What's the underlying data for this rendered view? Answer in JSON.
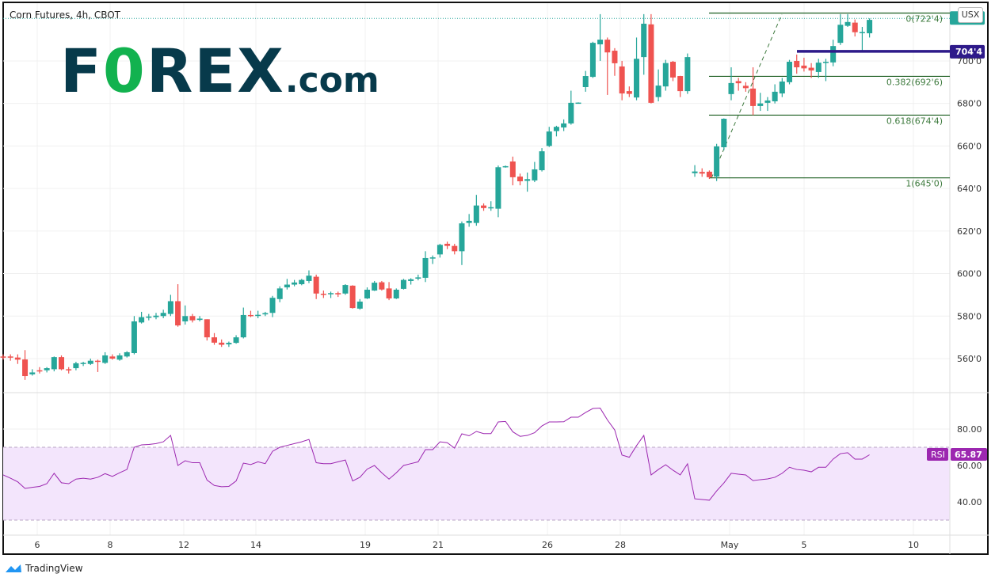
{
  "header": {
    "title": "Corn Futures, 4h, CBOT",
    "currency": "USX"
  },
  "logo": {
    "text": "FOREX.com",
    "part1": "F",
    "part2": "0",
    "part3": "REX",
    "part4": ".com"
  },
  "footer": {
    "brand": "TradingView"
  },
  "colors": {
    "up": "#26a69a",
    "down": "#ef5350",
    "fib": "#1b5e20",
    "level_line": "#2e1a8a",
    "rsi": "#9c27b0",
    "rsi_band": "#f3e5fc",
    "logo_dark": "#073a4b",
    "logo_green": "#12b24f"
  },
  "chart_data": {
    "type": "candlestick",
    "title": "Corn Futures, 4h, CBOT",
    "price_axis": {
      "ylim": [
        550,
        724
      ],
      "ticks": [
        {
          "value": 700,
          "label": "700'0"
        },
        {
          "value": 680,
          "label": "680'0"
        },
        {
          "value": 660,
          "label": "660'0"
        },
        {
          "value": 640,
          "label": "640'0"
        },
        {
          "value": 620,
          "label": "620'0"
        },
        {
          "value": 600,
          "label": "600'0"
        },
        {
          "value": 580,
          "label": "580'0"
        },
        {
          "value": 560,
          "label": "560'0"
        }
      ]
    },
    "x_ticks": [
      "6",
      "8",
      "12",
      "14",
      "19",
      "21",
      "26",
      "28",
      "May",
      "5",
      "10"
    ],
    "candles_ohlc": [
      [
        561,
        562,
        559.5,
        560.5
      ],
      [
        561,
        562,
        559,
        560.5
      ],
      [
        560.5,
        562,
        557.5,
        559.5
      ],
      [
        559.6,
        564,
        550,
        551.8
      ],
      [
        552.6,
        555,
        552,
        553.5
      ],
      [
        554.5,
        556,
        553,
        554
      ],
      [
        554.5,
        556,
        553.5,
        555.5
      ],
      [
        555,
        561,
        554,
        560.7
      ],
      [
        560.7,
        561.5,
        554.5,
        555
      ],
      [
        555,
        556,
        553,
        554.5
      ],
      [
        555.5,
        558.5,
        554.5,
        557.8
      ],
      [
        557.5,
        558.5,
        556.5,
        558
      ],
      [
        557.5,
        560,
        557,
        559
      ],
      [
        559,
        559.5,
        553.7,
        558.5
      ],
      [
        558,
        563,
        557.5,
        561.5
      ],
      [
        561,
        562,
        559.5,
        560
      ],
      [
        559.5,
        562.5,
        559,
        561.5
      ],
      [
        561,
        563.5,
        560.5,
        563
      ],
      [
        562.6,
        580,
        562,
        577.5
      ],
      [
        577,
        582,
        576.5,
        579.5
      ],
      [
        579.2,
        581,
        578,
        579.8
      ],
      [
        579.5,
        581.5,
        578.5,
        580.2
      ],
      [
        580,
        583,
        579,
        581.5
      ],
      [
        581,
        590,
        580,
        587
      ],
      [
        587,
        595,
        575,
        575.6
      ],
      [
        577.5,
        585,
        576,
        580
      ],
      [
        580,
        581,
        577,
        578
      ],
      [
        578.2,
        580,
        577.5,
        578.8
      ],
      [
        578.5,
        578.5,
        568.5,
        570
      ],
      [
        570,
        572,
        566.5,
        567.5
      ],
      [
        567.5,
        569,
        565.5,
        566.5
      ],
      [
        566.7,
        568,
        565.5,
        567.4
      ],
      [
        567.4,
        571,
        567,
        570
      ],
      [
        570,
        584,
        569.5,
        580.5
      ],
      [
        580.5,
        582.5,
        579.5,
        580
      ],
      [
        580.2,
        582.5,
        579,
        580.6
      ],
      [
        580.8,
        582,
        580,
        581.4
      ],
      [
        581.5,
        589.5,
        579.5,
        588.6
      ],
      [
        588,
        594,
        586.5,
        593
      ],
      [
        593.5,
        597.5,
        592.5,
        594.8
      ],
      [
        594.8,
        597,
        594,
        595.8
      ],
      [
        595,
        597.5,
        594.5,
        597
      ],
      [
        596.5,
        601.5,
        595.5,
        599
      ],
      [
        598.5,
        599.5,
        588,
        590.6
      ],
      [
        590.5,
        592,
        588.5,
        590
      ],
      [
        590.3,
        591.5,
        588.5,
        590.8
      ],
      [
        590.8,
        591.5,
        589,
        590.2
      ],
      [
        590.6,
        595,
        590,
        594.6
      ],
      [
        594.3,
        594.5,
        583.5,
        583.8
      ],
      [
        583.5,
        588,
        583,
        586.8
      ],
      [
        588.3,
        593.5,
        588,
        592.4
      ],
      [
        592,
        596.5,
        591.8,
        595.7
      ],
      [
        595.9,
        596.5,
        592,
        592.5
      ],
      [
        593,
        596,
        587.5,
        588.3
      ],
      [
        588.3,
        593,
        588,
        592.4
      ],
      [
        592.8,
        597.5,
        592.5,
        597
      ],
      [
        596.5,
        597.8,
        594.8,
        597.3
      ],
      [
        597.6,
        599.5,
        596.8,
        598.2
      ],
      [
        598,
        610.5,
        596,
        607.3
      ],
      [
        607.2,
        608.5,
        604.5,
        607.6
      ],
      [
        609,
        614,
        607.5,
        613.5
      ],
      [
        614,
        615,
        611.5,
        613
      ],
      [
        613,
        614,
        609,
        610.5
      ],
      [
        610.5,
        624.5,
        604,
        623.6
      ],
      [
        623.8,
        628,
        622,
        624.8
      ],
      [
        623.8,
        637,
        622.5,
        632
      ],
      [
        632,
        633,
        629.5,
        630.8
      ],
      [
        630.8,
        634,
        629.5,
        631.2
      ],
      [
        630.5,
        650.8,
        626.5,
        650
      ],
      [
        650.3,
        650.8,
        649.8,
        650.5
      ],
      [
        652.7,
        655,
        641.5,
        645.3
      ],
      [
        645.6,
        647,
        641.5,
        643.4
      ],
      [
        643.6,
        647.5,
        638.5,
        644.4
      ],
      [
        643.8,
        652.5,
        643,
        649
      ],
      [
        648.6,
        659,
        648,
        657.5
      ],
      [
        660,
        669,
        659.5,
        666.8
      ],
      [
        667,
        669.5,
        664.5,
        669
      ],
      [
        668.7,
        672.5,
        667,
        670.6
      ],
      [
        670.6,
        686,
        670,
        680.3
      ],
      [
        680.3,
        680.5,
        680,
        680.4
      ],
      [
        687.7,
        695.3,
        685.5,
        692.9
      ],
      [
        692.5,
        709,
        692,
        708.5
      ],
      [
        707.8,
        722,
        700,
        710
      ],
      [
        710,
        711,
        684,
        704
      ],
      [
        704.8,
        706,
        693,
        698.9
      ],
      [
        697.4,
        700,
        681.5,
        684.7
      ],
      [
        685.8,
        688,
        683,
        684.5
      ],
      [
        682.8,
        711,
        681.5,
        701
      ],
      [
        701.8,
        722,
        693.5,
        717.5
      ],
      [
        717.2,
        722,
        680,
        680.3
      ],
      [
        683,
        696,
        681,
        688.4
      ],
      [
        688,
        700.5,
        686,
        699
      ],
      [
        699.6,
        700,
        690.5,
        692.2
      ],
      [
        692.9,
        693,
        683,
        685.8
      ],
      [
        685.8,
        703.5,
        684.5,
        701.8
      ],
      [
        647.2,
        651,
        645.5,
        648
      ],
      [
        647.8,
        649.5,
        645.5,
        647
      ],
      [
        647.9,
        648.5,
        644.5,
        645.3
      ],
      [
        645.6,
        661,
        643.5,
        659.8
      ],
      [
        659.4,
        673,
        658,
        672.8
      ],
      [
        684.4,
        697,
        681.5,
        689.6
      ],
      [
        690.5,
        692,
        686,
        689.5
      ],
      [
        688.3,
        690,
        685.5,
        687.2
      ],
      [
        687,
        697,
        674.5,
        678.8
      ],
      [
        678.8,
        685,
        676.5,
        680
      ],
      [
        680.3,
        683,
        676.5,
        681.4
      ],
      [
        681,
        689,
        680,
        685.5
      ],
      [
        684.7,
        692,
        683,
        690.3
      ],
      [
        690,
        700.5,
        689,
        699.6
      ],
      [
        700,
        703,
        694,
        697
      ],
      [
        697.8,
        701.5,
        695,
        696.5
      ],
      [
        696.8,
        699,
        692,
        695.5
      ],
      [
        694.8,
        701,
        692,
        699.2
      ],
      [
        699.3,
        701,
        690.5,
        699.6
      ],
      [
        699.3,
        710,
        697.5,
        707
      ],
      [
        708.5,
        722,
        707.5,
        717
      ],
      [
        716.5,
        722,
        716,
        718.3
      ],
      [
        718,
        719.5,
        711.5,
        713.5
      ],
      [
        713.4,
        716,
        704.5,
        713.6
      ],
      [
        713,
        720,
        711,
        719.3
      ]
    ],
    "fibonacci": [
      {
        "level": "0",
        "price": 722.5,
        "label": "0(722'4)"
      },
      {
        "level": "0.382",
        "price": 692.75,
        "label": "0.382(692'6)"
      },
      {
        "level": "0.618",
        "price": 674.5,
        "label": "0.618(674'4)"
      },
      {
        "level": "1",
        "price": 645,
        "label": "1(645'0)"
      }
    ],
    "horizontal_level": {
      "price": 704.5,
      "label": "704'4"
    },
    "last_price": 720,
    "rsi": {
      "name": "RSI",
      "value_label": "65.87",
      "ylim": [
        22,
        100
      ],
      "ticks": [
        {
          "value": 80,
          "label": "80.00"
        },
        {
          "value": 60,
          "label": "60.00"
        },
        {
          "value": 40,
          "label": "40.00"
        }
      ],
      "band": [
        30,
        70
      ],
      "values": [
        54.8,
        53,
        51,
        47.4,
        48,
        48.5,
        50,
        55.7,
        50.5,
        50,
        52.5,
        53,
        52.5,
        53.5,
        55.5,
        54,
        56,
        57.8,
        70,
        71.3,
        71.5,
        72,
        73,
        76.5,
        60,
        62.6,
        61.5,
        61.5,
        52,
        49,
        48.3,
        48.5,
        51.5,
        61.3,
        60.5,
        62,
        61,
        67.8,
        70,
        71,
        72,
        73,
        74.3,
        61.5,
        61,
        61,
        62,
        63,
        51.5,
        53.5,
        58,
        60,
        56,
        52.5,
        56,
        60,
        61,
        62,
        68.7,
        68.7,
        73,
        72.5,
        69.5,
        77.4,
        76.3,
        78.7,
        77.5,
        77.5,
        83.9,
        84.2,
        78.5,
        76,
        76.5,
        78,
        81.7,
        83.9,
        83.9,
        84,
        86.5,
        86.5,
        89.1,
        91.3,
        91.5,
        85,
        79.5,
        65.7,
        64.5,
        70.9,
        76.5,
        54.8,
        57.8,
        60.4,
        57.4,
        54.8,
        60.9,
        41.7,
        41.3,
        40.9,
        46,
        50.4,
        55.7,
        55.2,
        54.8,
        51.7,
        52.2,
        52.6,
        53.5,
        55.7,
        59,
        57.8,
        57.4,
        56.5,
        59,
        59,
        63.5,
        66.5,
        67,
        63.5,
        63.5,
        65.87
      ]
    }
  }
}
